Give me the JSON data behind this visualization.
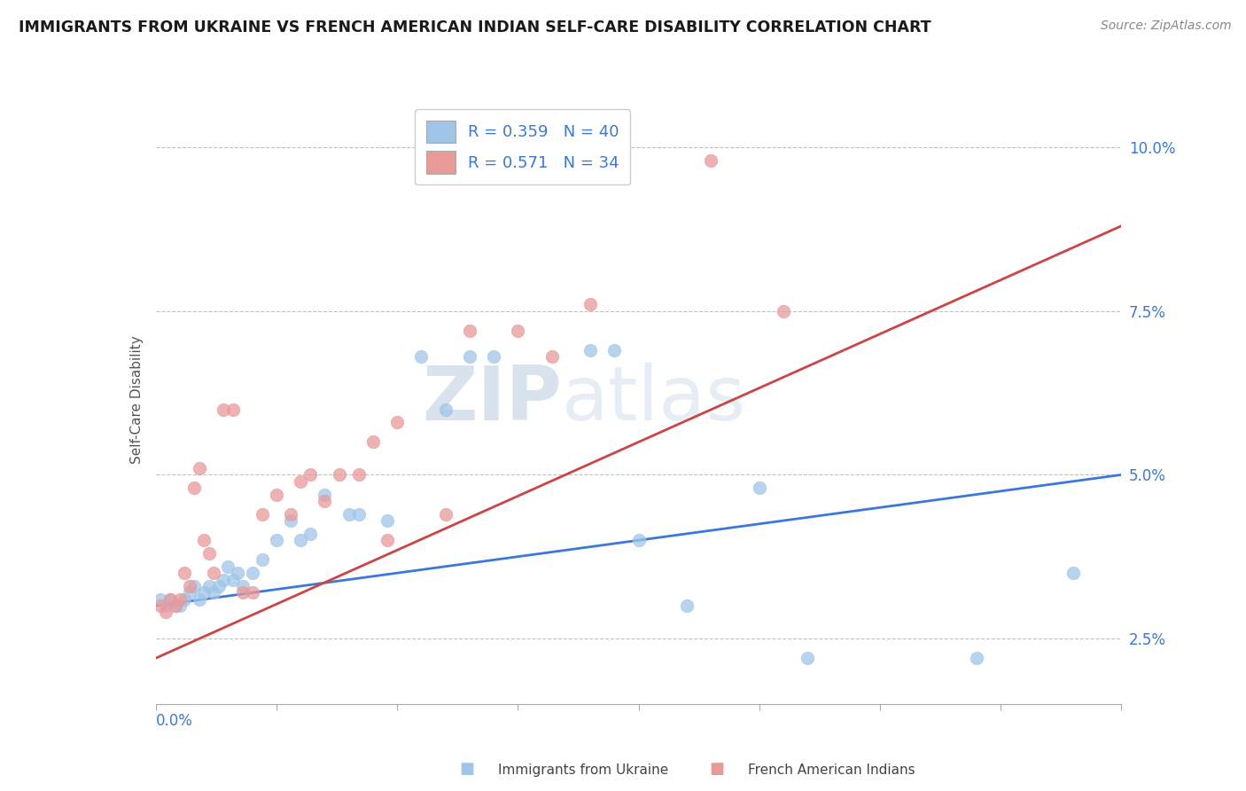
{
  "title": "IMMIGRANTS FROM UKRAINE VS FRENCH AMERICAN INDIAN SELF-CARE DISABILITY CORRELATION CHART",
  "source": "Source: ZipAtlas.com",
  "ylabel": "Self-Care Disability",
  "xmin": 0.0,
  "xmax": 0.2,
  "ymin": 0.015,
  "ymax": 0.108,
  "yticks": [
    0.025,
    0.05,
    0.075,
    0.1
  ],
  "ytick_labels": [
    "2.5%",
    "5.0%",
    "7.5%",
    "10.0%"
  ],
  "legend_blue_r": "R = 0.359",
  "legend_blue_n": "N = 40",
  "legend_pink_r": "R = 0.571",
  "legend_pink_n": "N = 34",
  "blue_color": "#9fc5e8",
  "pink_color": "#ea9999",
  "blue_line_color": "#3c78d8",
  "pink_line_color": "#cc4444",
  "watermark_zip": "ZIP",
  "watermark_atlas": "atlas",
  "blue_line_x": [
    0.0,
    0.2
  ],
  "blue_line_y": [
    0.03,
    0.05
  ],
  "pink_line_x": [
    0.0,
    0.2
  ],
  "pink_line_y": [
    0.022,
    0.088
  ],
  "blue_scatter_x": [
    0.001,
    0.002,
    0.003,
    0.004,
    0.005,
    0.006,
    0.007,
    0.008,
    0.009,
    0.01,
    0.011,
    0.012,
    0.013,
    0.014,
    0.015,
    0.016,
    0.017,
    0.018,
    0.02,
    0.022,
    0.025,
    0.028,
    0.03,
    0.032,
    0.035,
    0.04,
    0.042,
    0.048,
    0.055,
    0.06,
    0.065,
    0.07,
    0.09,
    0.095,
    0.1,
    0.11,
    0.125,
    0.135,
    0.17,
    0.19
  ],
  "blue_scatter_y": [
    0.031,
    0.03,
    0.031,
    0.03,
    0.03,
    0.031,
    0.032,
    0.033,
    0.031,
    0.032,
    0.033,
    0.032,
    0.033,
    0.034,
    0.036,
    0.034,
    0.035,
    0.033,
    0.035,
    0.037,
    0.04,
    0.043,
    0.04,
    0.041,
    0.047,
    0.044,
    0.044,
    0.043,
    0.068,
    0.06,
    0.068,
    0.068,
    0.069,
    0.069,
    0.04,
    0.03,
    0.048,
    0.022,
    0.022,
    0.035
  ],
  "pink_scatter_x": [
    0.001,
    0.002,
    0.003,
    0.004,
    0.005,
    0.006,
    0.007,
    0.008,
    0.009,
    0.01,
    0.011,
    0.012,
    0.014,
    0.016,
    0.018,
    0.02,
    0.022,
    0.025,
    0.028,
    0.03,
    0.032,
    0.035,
    0.038,
    0.042,
    0.045,
    0.048,
    0.05,
    0.06,
    0.065,
    0.075,
    0.082,
    0.09,
    0.115,
    0.13
  ],
  "pink_scatter_y": [
    0.03,
    0.029,
    0.031,
    0.03,
    0.031,
    0.035,
    0.033,
    0.048,
    0.051,
    0.04,
    0.038,
    0.035,
    0.06,
    0.06,
    0.032,
    0.032,
    0.044,
    0.047,
    0.044,
    0.049,
    0.05,
    0.046,
    0.05,
    0.05,
    0.055,
    0.04,
    0.058,
    0.044,
    0.072,
    0.072,
    0.068,
    0.076,
    0.098,
    0.075
  ],
  "background_color": "#ffffff"
}
